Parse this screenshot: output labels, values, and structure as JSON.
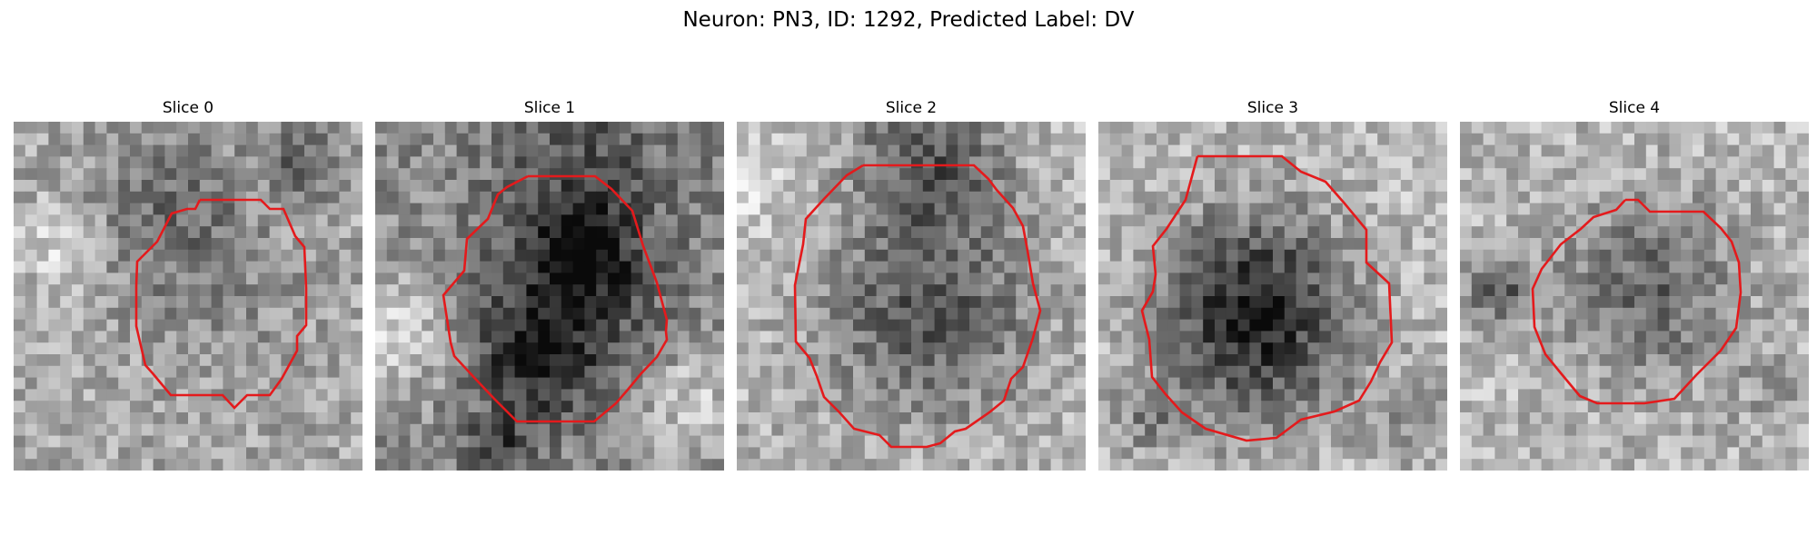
{
  "figure": {
    "title": "Neuron: PN3, ID: 1292, Predicted Label: DV",
    "contour_color": "#e41a1c",
    "grid_size": 30,
    "colormap": "gray"
  },
  "panels": [
    {
      "title": "Slice 0",
      "icon": "grayscale-microscopy-slice"
    },
    {
      "title": "Slice 1",
      "icon": "grayscale-microscopy-slice"
    },
    {
      "title": "Slice 2",
      "icon": "grayscale-microscopy-slice"
    },
    {
      "title": "Slice 3",
      "icon": "grayscale-microscopy-slice"
    },
    {
      "title": "Slice 4",
      "icon": "grayscale-microscopy-slice"
    }
  ]
}
